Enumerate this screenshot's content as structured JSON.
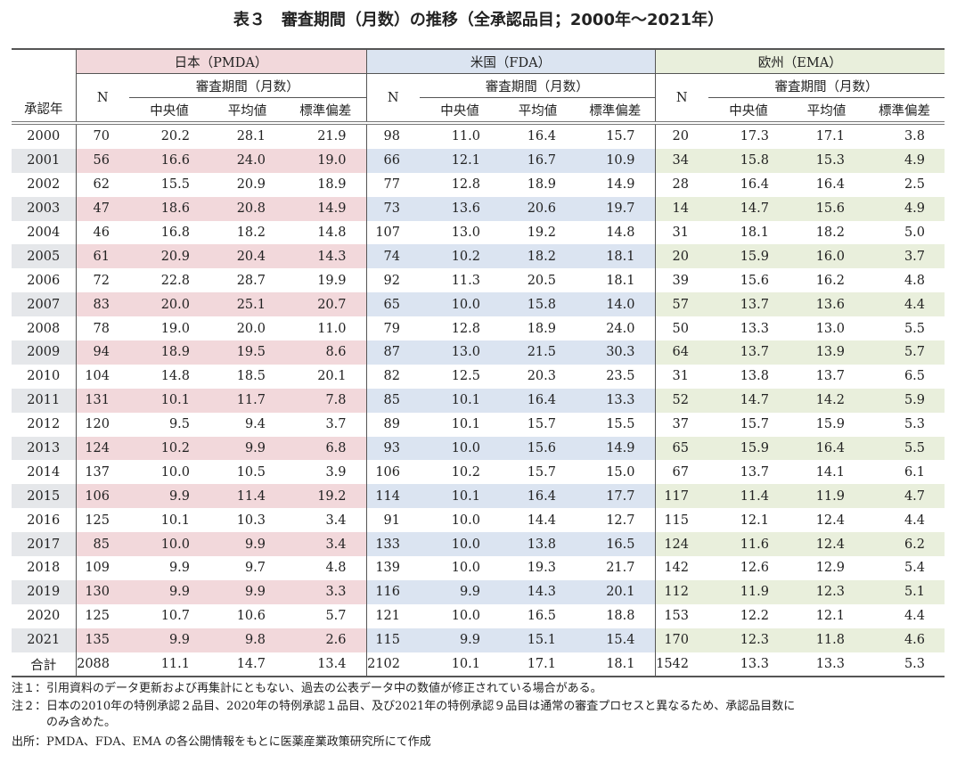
{
  "title": "表３　審査期間（月数）の推移（全承認品目；2000年～2021年）",
  "header": {
    "year": "承認年",
    "regions": [
      "日本（PMDA）",
      "米国（FDA）",
      "欧州（EMA）"
    ],
    "n": "N",
    "period": "審査期間（月数）",
    "median": "中央値",
    "mean": "平均値",
    "sd": "標準偏差"
  },
  "colors": {
    "japan": "#f2d8db",
    "us": "#dbe4f1",
    "eu": "#e9efdc",
    "year_shade": "#e5e7ea"
  },
  "rows": [
    [
      "2000",
      "70",
      "20.2",
      "28.1",
      "21.9",
      "98",
      "11.0",
      "16.4",
      "15.7",
      "20",
      "17.3",
      "17.1",
      "3.8"
    ],
    [
      "2001",
      "56",
      "16.6",
      "24.0",
      "19.0",
      "66",
      "12.1",
      "16.7",
      "10.9",
      "34",
      "15.8",
      "15.3",
      "4.9"
    ],
    [
      "2002",
      "62",
      "15.5",
      "20.9",
      "18.9",
      "77",
      "12.8",
      "18.9",
      "14.9",
      "28",
      "16.4",
      "16.4",
      "2.5"
    ],
    [
      "2003",
      "47",
      "18.6",
      "20.8",
      "14.9",
      "73",
      "13.6",
      "20.6",
      "19.7",
      "14",
      "14.7",
      "15.6",
      "4.9"
    ],
    [
      "2004",
      "46",
      "16.8",
      "18.2",
      "14.8",
      "107",
      "13.0",
      "19.2",
      "14.8",
      "31",
      "18.1",
      "18.2",
      "5.0"
    ],
    [
      "2005",
      "61",
      "20.9",
      "20.4",
      "14.3",
      "74",
      "10.2",
      "18.2",
      "18.1",
      "20",
      "15.9",
      "16.0",
      "3.7"
    ],
    [
      "2006",
      "72",
      "22.8",
      "28.7",
      "19.9",
      "92",
      "11.3",
      "20.5",
      "18.1",
      "39",
      "15.6",
      "16.2",
      "4.8"
    ],
    [
      "2007",
      "83",
      "20.0",
      "25.1",
      "20.7",
      "65",
      "10.0",
      "15.8",
      "14.0",
      "57",
      "13.7",
      "13.6",
      "4.4"
    ],
    [
      "2008",
      "78",
      "19.0",
      "20.0",
      "11.0",
      "79",
      "12.8",
      "18.9",
      "24.0",
      "50",
      "13.3",
      "13.0",
      "5.5"
    ],
    [
      "2009",
      "94",
      "18.9",
      "19.5",
      "8.6",
      "87",
      "13.0",
      "21.5",
      "30.3",
      "64",
      "13.7",
      "13.9",
      "5.7"
    ],
    [
      "2010",
      "104",
      "14.8",
      "18.5",
      "20.1",
      "82",
      "12.5",
      "20.3",
      "23.5",
      "31",
      "13.8",
      "13.7",
      "6.5"
    ],
    [
      "2011",
      "131",
      "10.1",
      "11.7",
      "7.8",
      "85",
      "10.1",
      "16.4",
      "13.3",
      "52",
      "14.7",
      "14.2",
      "5.9"
    ],
    [
      "2012",
      "120",
      "9.5",
      "9.4",
      "3.7",
      "89",
      "10.1",
      "15.7",
      "15.5",
      "37",
      "15.7",
      "15.9",
      "5.3"
    ],
    [
      "2013",
      "124",
      "10.2",
      "9.9",
      "6.8",
      "93",
      "10.0",
      "15.6",
      "14.9",
      "65",
      "15.9",
      "16.4",
      "5.5"
    ],
    [
      "2014",
      "137",
      "10.0",
      "10.5",
      "3.9",
      "106",
      "10.2",
      "15.7",
      "15.0",
      "67",
      "13.7",
      "14.1",
      "6.1"
    ],
    [
      "2015",
      "106",
      "9.9",
      "11.4",
      "19.2",
      "114",
      "10.1",
      "16.4",
      "17.7",
      "117",
      "11.4",
      "11.9",
      "4.7"
    ],
    [
      "2016",
      "125",
      "10.1",
      "10.3",
      "3.4",
      "91",
      "10.0",
      "14.4",
      "12.7",
      "115",
      "12.1",
      "12.4",
      "4.4"
    ],
    [
      "2017",
      "85",
      "10.0",
      "9.9",
      "3.4",
      "133",
      "10.0",
      "13.8",
      "16.5",
      "124",
      "11.6",
      "12.4",
      "6.2"
    ],
    [
      "2018",
      "109",
      "9.9",
      "9.7",
      "4.8",
      "139",
      "10.0",
      "19.3",
      "21.7",
      "142",
      "12.6",
      "12.9",
      "5.4"
    ],
    [
      "2019",
      "130",
      "9.9",
      "9.9",
      "3.3",
      "116",
      "9.9",
      "14.3",
      "20.1",
      "112",
      "11.9",
      "12.3",
      "5.1"
    ],
    [
      "2020",
      "125",
      "10.7",
      "10.6",
      "5.7",
      "121",
      "10.0",
      "16.5",
      "18.8",
      "153",
      "12.2",
      "12.1",
      "4.4"
    ],
    [
      "2021",
      "135",
      "9.9",
      "9.8",
      "2.6",
      "115",
      "9.9",
      "15.1",
      "15.4",
      "170",
      "12.3",
      "11.8",
      "4.6"
    ],
    [
      "合計",
      "2088",
      "11.1",
      "14.7",
      "13.4",
      "2102",
      "10.1",
      "17.1",
      "18.1",
      "1542",
      "13.3",
      "13.3",
      "5.3"
    ]
  ],
  "notes": [
    "注１：引用資料のデータ更新および再集計にともない、過去の公表データ中の数値が修正されている場合がある。",
    "注２：日本の2010年の特例承認２品目、2020年の特例承認１品目、及び2021年の特例承認９品目は通常の審査プロセスと異なるため、承認品目数に",
    "　　　のみ含めた。",
    "出所：PMDA、FDA、EMA の各公開情報をもとに医薬産業政策研究所にて作成"
  ]
}
